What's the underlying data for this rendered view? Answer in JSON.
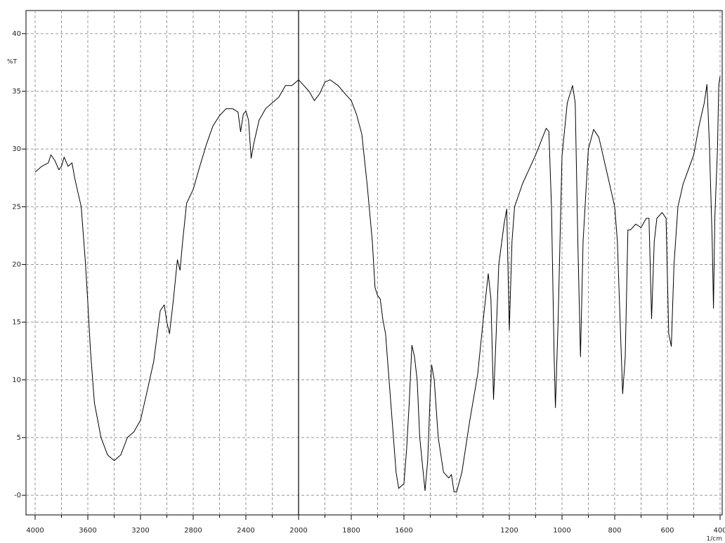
{
  "chart_data": {
    "type": "line",
    "y_label": "%T",
    "x_label": "1/cm",
    "xlim": [
      4000,
      400
    ],
    "x_scale_break": {
      "value": 2000,
      "factor": 2
    },
    "xticks": [
      4000,
      3600,
      3200,
      2800,
      2400,
      2000,
      1800,
      1600,
      1200,
      1000,
      800,
      600,
      400
    ],
    "x_minor_ticks": [
      3800,
      3400,
      3000,
      2600,
      2200,
      1900,
      1700,
      1500,
      1400,
      1300,
      1100,
      900,
      700,
      500
    ],
    "ylim": [
      -1.7,
      42
    ],
    "yticks": [
      40,
      35,
      30,
      25,
      20,
      15,
      10,
      5,
      {
        "value": 0,
        "label": "-0"
      }
    ],
    "grid": true,
    "cursor_x": 2000,
    "color": "#000000",
    "x": [
      4000,
      3950,
      3900,
      3880,
      3850,
      3820,
      3800,
      3780,
      3750,
      3720,
      3700,
      3680,
      3650,
      3620,
      3600,
      3580,
      3550,
      3500,
      3450,
      3400,
      3350,
      3300,
      3250,
      3200,
      3150,
      3100,
      3050,
      3020,
      3000,
      2980,
      2950,
      2920,
      2900,
      2880,
      2850,
      2800,
      2750,
      2700,
      2650,
      2600,
      2550,
      2500,
      2460,
      2440,
      2420,
      2400,
      2380,
      2360,
      2340,
      2300,
      2250,
      2200,
      2150,
      2100,
      2050,
      2000,
      1960,
      1940,
      1920,
      1900,
      1880,
      1850,
      1820,
      1800,
      1780,
      1760,
      1740,
      1720,
      1710,
      1700,
      1690,
      1680,
      1670,
      1650,
      1630,
      1620,
      1600,
      1590,
      1580,
      1570,
      1560,
      1550,
      1540,
      1520,
      1510,
      1500,
      1495,
      1485,
      1470,
      1450,
      1430,
      1420,
      1410,
      1400,
      1380,
      1350,
      1320,
      1300,
      1280,
      1270,
      1260,
      1250,
      1240,
      1220,
      1210,
      1200,
      1190,
      1180,
      1150,
      1100,
      1060,
      1050,
      1040,
      1030,
      1025,
      1015,
      1000,
      980,
      960,
      950,
      940,
      930,
      920,
      900,
      880,
      860,
      830,
      800,
      790,
      770,
      760,
      750,
      740,
      720,
      700,
      680,
      670,
      660,
      650,
      640,
      620,
      605,
      595,
      585,
      575,
      560,
      540,
      500,
      480,
      460,
      450,
      445,
      440,
      430,
      425,
      420,
      410,
      405,
      400
    ],
    "values": [
      28,
      28.5,
      28.8,
      29.5,
      29,
      28.2,
      28.5,
      29.3,
      28.5,
      28.8,
      27.5,
      26.5,
      25,
      20.4,
      16.7,
      12.5,
      8,
      5,
      3.5,
      3,
      3.5,
      5,
      5.5,
      6.5,
      9,
      11.6,
      16,
      16.5,
      15,
      14,
      17,
      20.4,
      19.5,
      22,
      25.3,
      26.5,
      28.5,
      30.4,
      32,
      32.9,
      33.5,
      33.5,
      33.2,
      31.5,
      33,
      33.3,
      32.5,
      29.2,
      30.5,
      32.5,
      33.5,
      34,
      34.5,
      35.5,
      35.5,
      36,
      35,
      34.2,
      34.8,
      35.8,
      36,
      35.5,
      34.7,
      34.2,
      33,
      31.3,
      27,
      22,
      18,
      17.3,
      17,
      15.2,
      14,
      8,
      2,
      0.6,
      1,
      4,
      8,
      13,
      12,
      10,
      5,
      0.4,
      3,
      9,
      11.3,
      10,
      5,
      2,
      1.5,
      1.8,
      0.3,
      0.3,
      2,
      6.5,
      10.5,
      15,
      19.2,
      17,
      8.3,
      14,
      20,
      23.5,
      24.8,
      14.3,
      22,
      25,
      27,
      29.5,
      31.8,
      31.5,
      25,
      12,
      7.6,
      15,
      29.4,
      34,
      35.5,
      34,
      22,
      12,
      22,
      30,
      31.7,
      31,
      28,
      25,
      22,
      8.8,
      12,
      23,
      23,
      23.5,
      23.2,
      24,
      24,
      15.3,
      22,
      24,
      24.5,
      24,
      14,
      12.9,
      20,
      25,
      27,
      29.5,
      32,
      34,
      35.6,
      33,
      30,
      22,
      16.2,
      24,
      30,
      35.5,
      36.3
    ]
  }
}
